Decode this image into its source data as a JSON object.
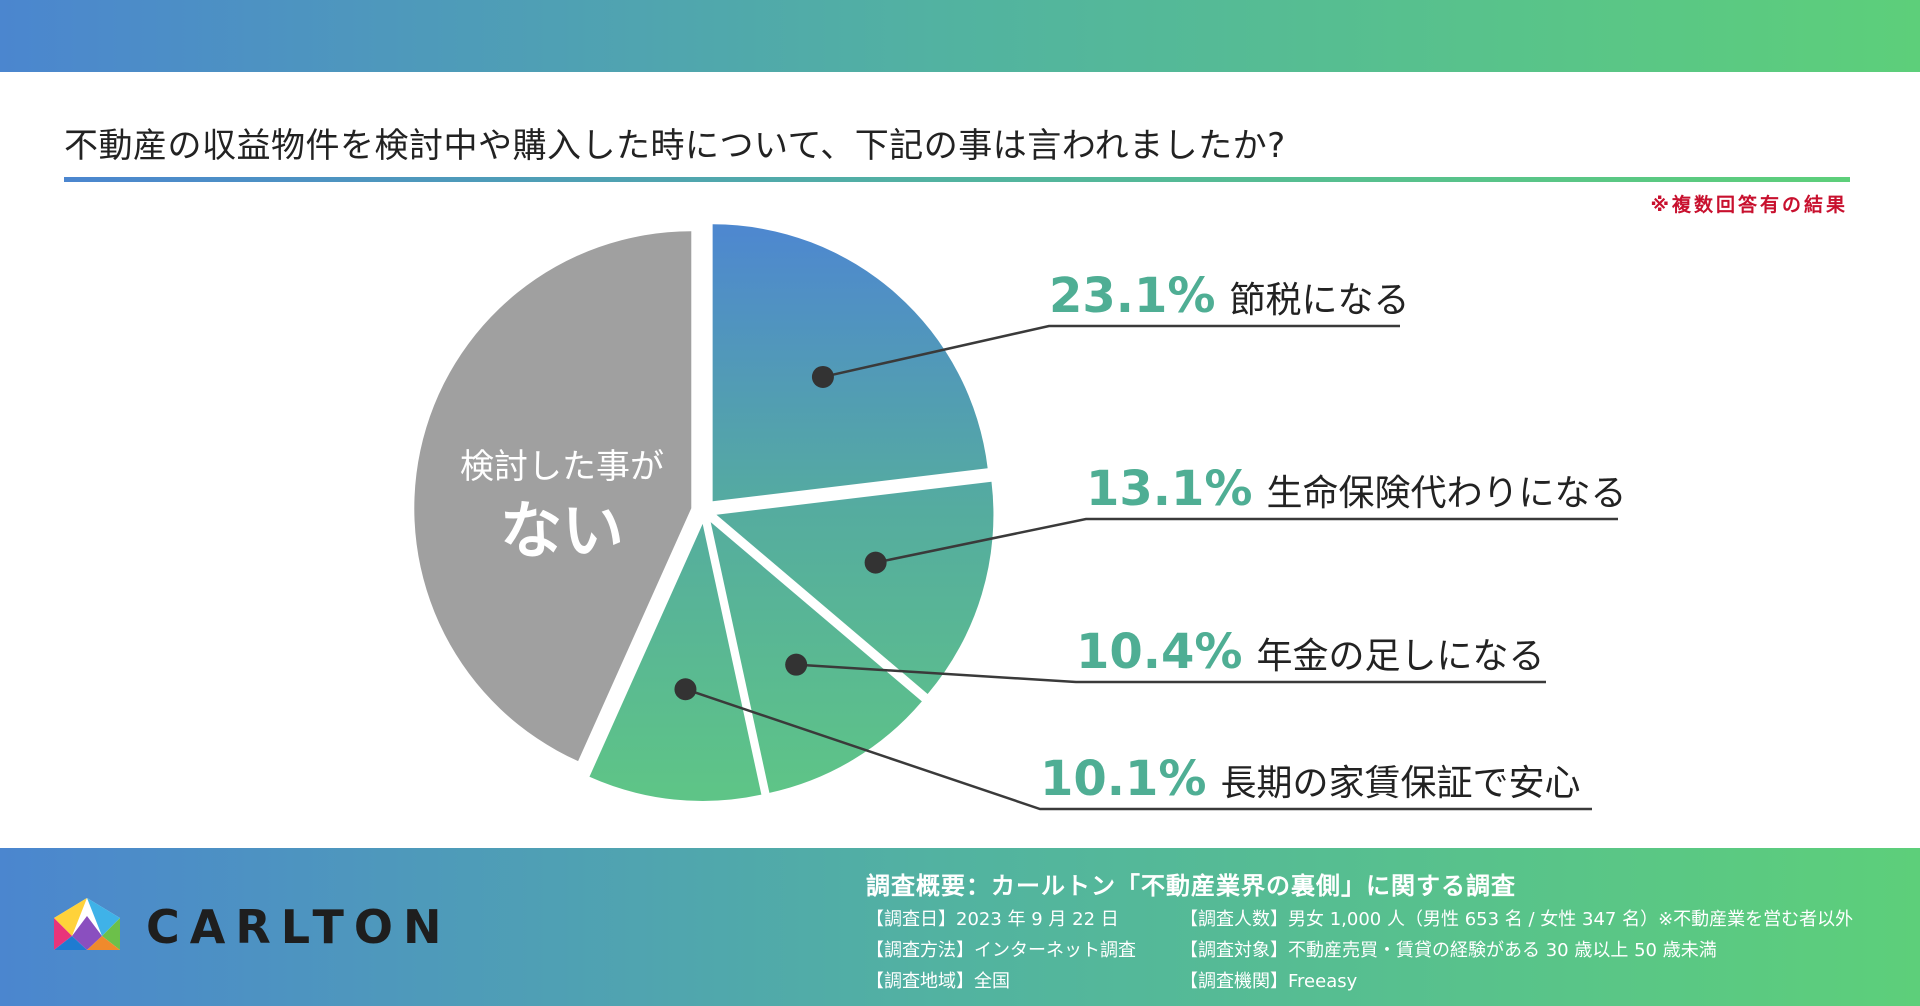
{
  "title": "不動産の収益物件を検討中や購入した時について、下記の事は言われましたか?",
  "note": "※複数回答有の結果",
  "colors": {
    "grey_slice": "#a0a0a0",
    "slice_top": "#4e88cf",
    "slice_bottom": "#5ec487",
    "percent_text": "#4fae94",
    "label_text": "#222222",
    "leader_line": "#3a3a3a"
  },
  "chart_data": {
    "type": "pie",
    "slices": [
      {
        "label": "節税になる",
        "value": 23.1,
        "display": "23.1%"
      },
      {
        "label": "生命保険代わりになる",
        "value": 13.1,
        "display": "13.1%"
      },
      {
        "label": "年金の足しになる",
        "value": 10.4,
        "display": "10.4%"
      },
      {
        "label": "長期の家賃保証で安心",
        "value": 10.1,
        "display": "10.1%"
      }
    ],
    "remainder": {
      "label_line1": "検討した事が",
      "label_line2": "ない"
    }
  },
  "footer": {
    "brand": "CARLTON",
    "heading": "調査概要：カールトン「不動産業界の裏側」に関する調査",
    "items": [
      "【調査日】2023 年 9 月 22 日",
      "【調査方法】インターネット調査",
      "【調査地域】全国",
      "【調査人数】男女 1,000 人（男性 653 名 / 女性 347 名）※不動産業を営む者以外",
      "【調査対象】不動産売買・賃貸の経験がある 30 歳以上 50 歳未満",
      "【調査機関】Freeasy"
    ]
  }
}
